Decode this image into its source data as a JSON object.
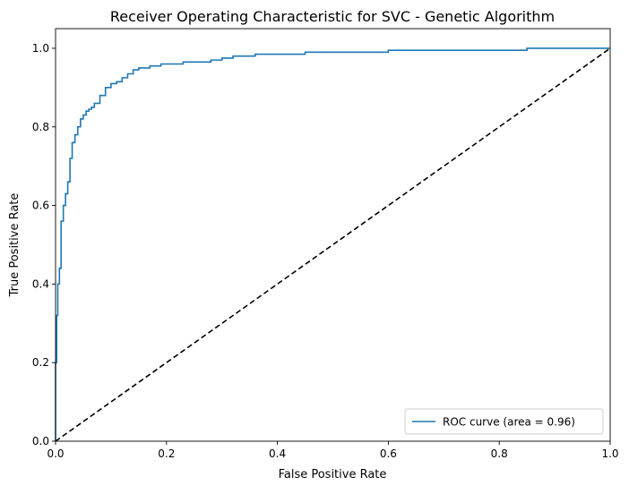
{
  "chart_data": {
    "type": "line",
    "title": "Receiver Operating Characteristic for SVC - Genetic Algorithm",
    "xlabel": "False Positive Rate",
    "ylabel": "True Positive Rate",
    "xlim": [
      0.0,
      1.0
    ],
    "ylim": [
      0.0,
      1.05
    ],
    "x_ticks": [
      0.0,
      0.2,
      0.4,
      0.6,
      0.8,
      1.0
    ],
    "y_ticks": [
      0.0,
      0.2,
      0.4,
      0.6,
      0.8,
      1.0
    ],
    "x_tick_labels": [
      "0.0",
      "0.2",
      "0.4",
      "0.6",
      "0.8",
      "1.0"
    ],
    "y_tick_labels": [
      "0.0",
      "0.2",
      "0.4",
      "0.6",
      "0.8",
      "1.0"
    ],
    "grid": false,
    "legend_position": "lower-right",
    "series": [
      {
        "name": "ROC curve (area = 0.96)",
        "color": "#1f77b4",
        "line_style": "solid",
        "x": [
          0.0,
          0.0,
          0.002,
          0.002,
          0.004,
          0.004,
          0.007,
          0.007,
          0.01,
          0.01,
          0.014,
          0.014,
          0.018,
          0.018,
          0.022,
          0.022,
          0.026,
          0.026,
          0.03,
          0.03,
          0.035,
          0.035,
          0.04,
          0.04,
          0.045,
          0.045,
          0.05,
          0.05,
          0.055,
          0.055,
          0.06,
          0.06,
          0.065,
          0.065,
          0.07,
          0.07,
          0.08,
          0.08,
          0.09,
          0.09,
          0.1,
          0.1,
          0.11,
          0.11,
          0.12,
          0.12,
          0.13,
          0.13,
          0.14,
          0.14,
          0.15,
          0.15,
          0.17,
          0.17,
          0.19,
          0.19,
          0.23,
          0.23,
          0.28,
          0.28,
          0.3,
          0.3,
          0.32,
          0.32,
          0.36,
          0.36,
          0.45,
          0.45,
          0.6,
          0.6,
          0.85,
          0.85,
          1.0
        ],
        "y": [
          0.0,
          0.2,
          0.2,
          0.32,
          0.32,
          0.4,
          0.4,
          0.44,
          0.44,
          0.56,
          0.56,
          0.6,
          0.6,
          0.63,
          0.63,
          0.66,
          0.66,
          0.72,
          0.72,
          0.76,
          0.76,
          0.78,
          0.78,
          0.8,
          0.8,
          0.82,
          0.82,
          0.83,
          0.83,
          0.84,
          0.84,
          0.845,
          0.845,
          0.85,
          0.85,
          0.86,
          0.86,
          0.88,
          0.88,
          0.9,
          0.9,
          0.91,
          0.91,
          0.915,
          0.915,
          0.925,
          0.925,
          0.935,
          0.935,
          0.945,
          0.945,
          0.95,
          0.95,
          0.955,
          0.955,
          0.96,
          0.96,
          0.965,
          0.965,
          0.97,
          0.97,
          0.975,
          0.975,
          0.98,
          0.98,
          0.985,
          0.985,
          0.99,
          0.99,
          0.995,
          0.995,
          1.0,
          1.0
        ]
      },
      {
        "color": "#000000",
        "line_style": "dashed",
        "x": [
          0.0,
          1.0
        ],
        "y": [
          0.0,
          1.0
        ]
      }
    ]
  }
}
